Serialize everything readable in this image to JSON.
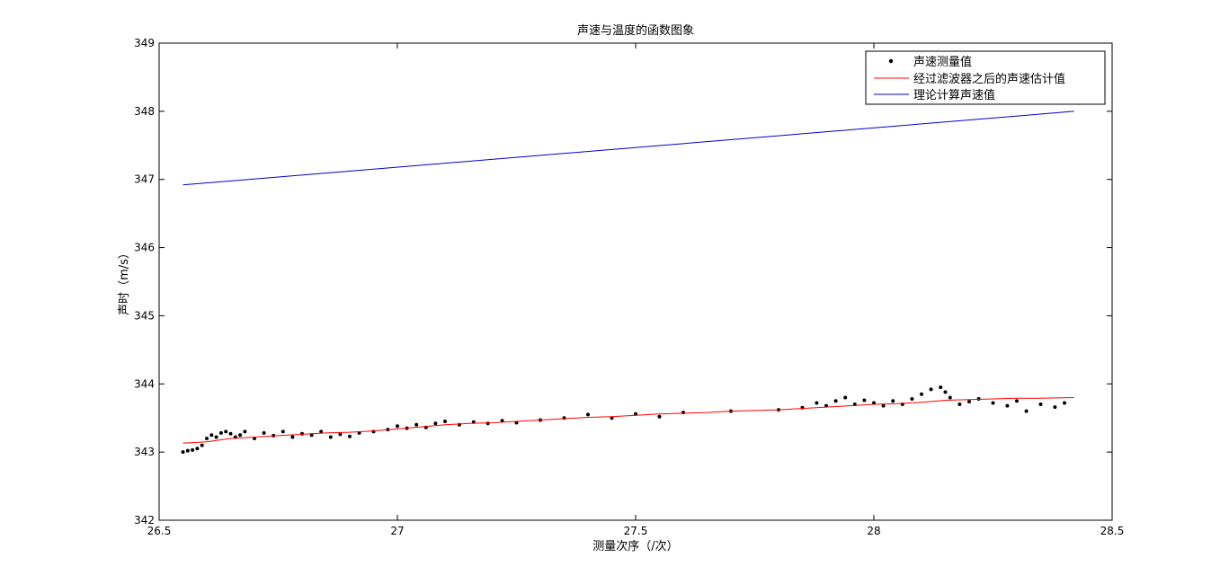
{
  "chart_data": {
    "type": "line",
    "title": "声速与温度的函数图象",
    "xlabel": "测量次序（/次）",
    "ylabel": "声时（m/s）",
    "xlim": [
      26.5,
      28.5
    ],
    "ylim": [
      342,
      349
    ],
    "xticks": [
      26.5,
      27,
      27.5,
      28,
      28.5
    ],
    "xtick_labels": [
      "26.5",
      "27",
      "27.5",
      "28",
      "28.5"
    ],
    "yticks": [
      342,
      343,
      344,
      345,
      346,
      347,
      348,
      349
    ],
    "ytick_labels": [
      "342",
      "343",
      "344",
      "345",
      "346",
      "347",
      "348",
      "349"
    ],
    "grid": false,
    "legend_position": "top-right",
    "series": [
      {
        "name": "声速测量值",
        "kind": "scatter",
        "color": "#000000",
        "marker": "dot",
        "x": [
          26.55,
          26.56,
          26.57,
          26.58,
          26.59,
          26.6,
          26.61,
          26.62,
          26.63,
          26.64,
          26.65,
          26.66,
          26.67,
          26.68,
          26.7,
          26.72,
          26.74,
          26.76,
          26.78,
          26.8,
          26.82,
          26.84,
          26.86,
          26.88,
          26.9,
          26.92,
          26.95,
          26.98,
          27.0,
          27.02,
          27.04,
          27.06,
          27.08,
          27.1,
          27.13,
          27.16,
          27.19,
          27.22,
          27.25,
          27.3,
          27.35,
          27.4,
          27.45,
          27.5,
          27.55,
          27.6,
          27.7,
          27.8,
          27.85,
          27.88,
          27.9,
          27.92,
          27.94,
          27.96,
          27.98,
          28.0,
          28.02,
          28.04,
          28.06,
          28.08,
          28.1,
          28.12,
          28.14,
          28.15,
          28.16,
          28.18,
          28.2,
          28.22,
          28.25,
          28.28,
          28.3,
          28.32,
          28.35,
          28.38,
          28.4
        ],
        "y": [
          343.0,
          343.02,
          343.03,
          343.05,
          343.1,
          343.2,
          343.25,
          343.22,
          343.28,
          343.3,
          343.27,
          343.22,
          343.25,
          343.3,
          343.2,
          343.28,
          343.24,
          343.3,
          343.22,
          343.27,
          343.25,
          343.3,
          343.22,
          343.26,
          343.23,
          343.28,
          343.3,
          343.33,
          343.38,
          343.35,
          343.4,
          343.36,
          343.42,
          343.45,
          343.4,
          343.44,
          343.42,
          343.46,
          343.43,
          343.47,
          343.5,
          343.55,
          343.5,
          343.56,
          343.52,
          343.58,
          343.6,
          343.62,
          343.65,
          343.72,
          343.68,
          343.75,
          343.8,
          343.7,
          343.76,
          343.72,
          343.68,
          343.75,
          343.7,
          343.78,
          343.85,
          343.92,
          343.95,
          343.88,
          343.8,
          343.7,
          343.74,
          343.78,
          343.72,
          343.68,
          343.75,
          343.6,
          343.7,
          343.66,
          343.72
        ]
      },
      {
        "name": "经过滤波器之后的声速估计值",
        "kind": "line",
        "color": "#ff0000",
        "x": [
          26.55,
          26.6,
          26.65,
          26.7,
          26.75,
          26.8,
          26.85,
          26.9,
          26.95,
          27.0,
          27.05,
          27.1,
          27.15,
          27.2,
          27.25,
          27.3,
          27.35,
          27.4,
          27.45,
          27.5,
          27.55,
          27.6,
          27.65,
          27.7,
          27.75,
          27.8,
          27.85,
          27.9,
          27.95,
          28.0,
          28.05,
          28.1,
          28.15,
          28.2,
          28.25,
          28.3,
          28.35,
          28.42
        ],
        "y": [
          343.13,
          343.15,
          343.2,
          343.22,
          343.24,
          343.26,
          343.28,
          343.29,
          343.31,
          343.34,
          343.37,
          343.4,
          343.42,
          343.43,
          343.45,
          343.47,
          343.49,
          343.51,
          343.52,
          343.54,
          343.56,
          343.57,
          343.58,
          343.6,
          343.61,
          343.62,
          343.64,
          343.66,
          343.68,
          343.7,
          343.71,
          343.73,
          343.76,
          343.77,
          343.78,
          343.79,
          343.79,
          343.8
        ]
      },
      {
        "name": "理论计算声速值",
        "kind": "line",
        "color": "#0000cc",
        "x": [
          26.55,
          28.42
        ],
        "y": [
          346.92,
          348.0
        ]
      }
    ]
  }
}
